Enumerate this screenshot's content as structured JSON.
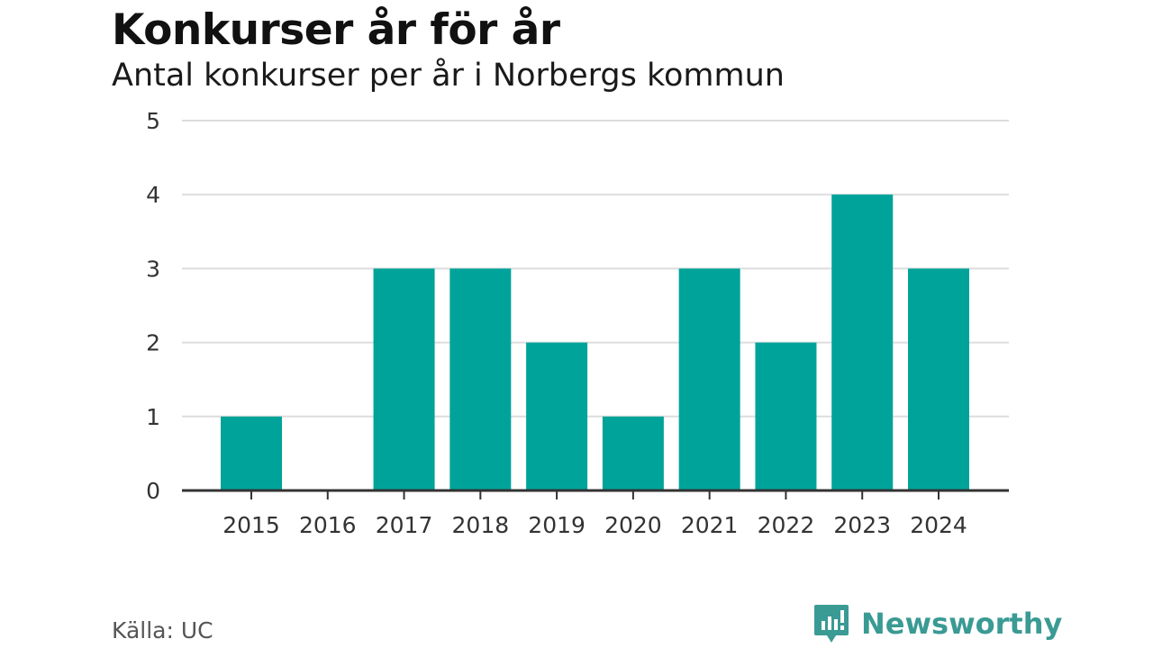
{
  "title": "Konkurser år för år",
  "subtitle": "Antal konkurser per år i Norbergs kommun",
  "source": "Källa: UC",
  "brand": {
    "name": "Newsworthy",
    "icon": "newsworthy-logo-icon",
    "color": "#3a9a94"
  },
  "colors": {
    "bar": "#00a39a",
    "grid": "#dddddd",
    "axis": "#333333"
  },
  "chart_data": {
    "type": "bar",
    "title": "Konkurser år för år",
    "subtitle": "Antal konkurser per år i Norbergs kommun",
    "categories": [
      "2015",
      "2016",
      "2017",
      "2018",
      "2019",
      "2020",
      "2021",
      "2022",
      "2023",
      "2024"
    ],
    "values": [
      1,
      0,
      3,
      3,
      2,
      1,
      3,
      2,
      4,
      3
    ],
    "xlabel": "",
    "ylabel": "",
    "ylim": [
      0,
      5
    ],
    "yticks": [
      0,
      1,
      2,
      3,
      4,
      5
    ],
    "grid": true,
    "legend": "none"
  }
}
